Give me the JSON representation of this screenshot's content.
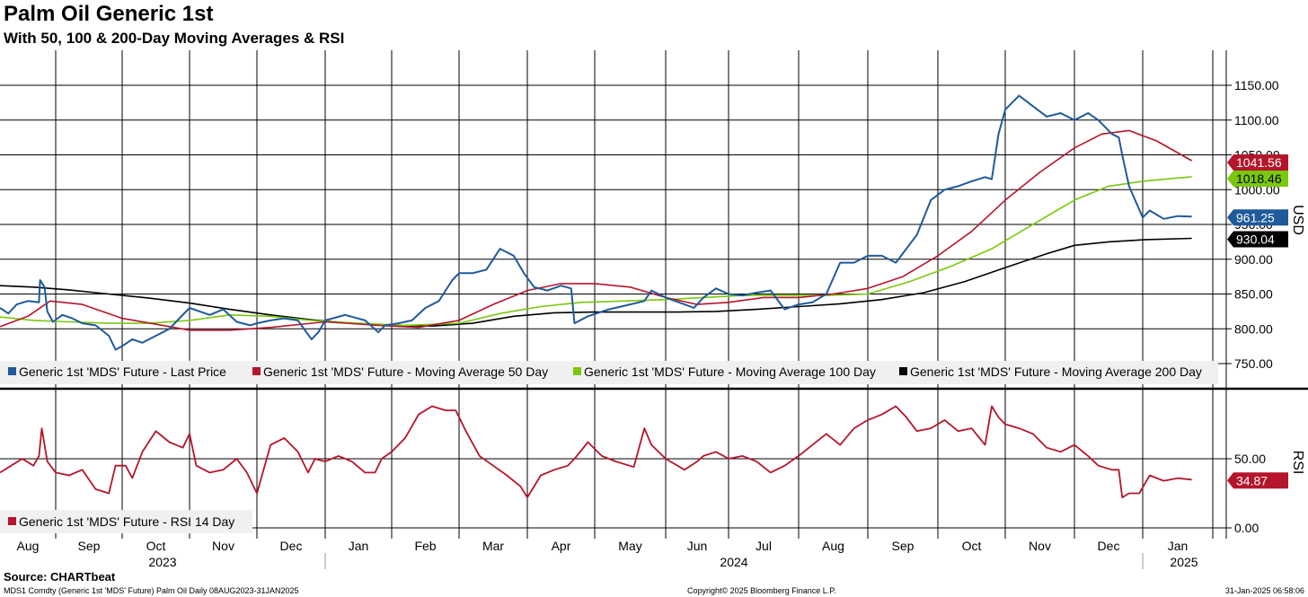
{
  "header": {
    "title": "Palm Oil Generic 1st",
    "subtitle": "With 50, 100 & 200-Day Moving Averages & RSI"
  },
  "footer": {
    "source": "Source: CHARTbeat",
    "left": "MDS1 Comdty (Generic 1st 'MDS' Future) Palm Oil  Daily 08AUG2023-31JAN2025",
    "middle": "Copyright© 2025 Bloomberg Finance L.P.",
    "right": "31-Jan-2025 06:58:06"
  },
  "colors": {
    "last": "#1f5a9a",
    "ma50": "#b5152b",
    "ma100": "#7ac80d",
    "ma200": "#000000",
    "rsi": "#b5152b",
    "grid": "#000000"
  },
  "chart_data": [
    {
      "type": "line",
      "title": "Palm Oil Generic 1st",
      "ylabel": "USD",
      "ylim": [
        720,
        1190
      ],
      "yticks": [
        750,
        800,
        850,
        900,
        950,
        1000,
        1050,
        1100,
        1150
      ],
      "ytick_labels": [
        "750.00",
        "800.00",
        "850.00",
        "900.00",
        "950.00",
        "1000.00",
        "1050.00",
        "1100.00",
        "1150.00"
      ],
      "xlim": [
        0,
        17.9
      ],
      "month_ticks": [
        "Aug",
        "Sep",
        "Oct",
        "Nov",
        "Dec",
        "Jan",
        "Feb",
        "Mar",
        "Apr",
        "May",
        "Jun",
        "Jul",
        "Aug",
        "Sep",
        "Oct",
        "Nov",
        "Dec",
        "Jan"
      ],
      "years": [
        {
          "label": "2023",
          "start": 0,
          "end": 4.7
        },
        {
          "label": "2024",
          "start": 4.7,
          "end": 16.7
        },
        {
          "label": "2025",
          "start": 16.7,
          "end": 17.9
        }
      ],
      "series": [
        {
          "name": "Generic 1st 'MDS' Future - Last Price",
          "color_key": "last",
          "last_label": "961.25",
          "x": [
            0,
            0.15,
            0.3,
            0.5,
            0.7,
            0.72,
            0.8,
            0.85,
            0.95,
            1.1,
            1.25,
            1.4,
            1.6,
            1.8,
            1.9,
            2.0,
            2.15,
            2.3,
            2.5,
            2.7,
            2.8,
            3.0,
            3.15,
            3.3,
            3.5,
            3.7,
            3.9,
            4.0,
            4.2,
            4.4,
            4.6,
            4.8,
            4.9,
            5.0,
            5.3,
            5.6,
            5.8,
            5.9,
            6.1,
            6.3,
            6.5,
            6.7,
            6.9,
            7.0,
            7.2,
            7.4,
            7.6,
            7.8,
            7.95,
            8.1,
            8.3,
            8.5,
            8.65,
            8.7,
            8.9,
            9.2,
            9.5,
            9.7,
            9.8,
            10.0,
            10.3,
            10.45,
            10.6,
            10.8,
            11.0,
            11.2,
            11.4,
            11.6,
            11.8,
            12.0,
            12.2,
            12.4,
            12.6,
            12.8,
            13.0,
            13.2,
            13.4,
            13.55,
            13.7,
            13.9,
            14.1,
            14.3,
            14.5,
            14.7,
            14.8,
            14.9,
            15.0,
            15.2,
            15.4,
            15.6,
            15.8,
            16.0,
            16.2,
            16.35,
            16.55,
            16.65,
            16.7,
            16.8,
            17.0,
            17.1,
            17.3,
            17.5,
            17.7
          ],
          "values": [
            830,
            822,
            835,
            840,
            838,
            870,
            860,
            825,
            810,
            820,
            815,
            808,
            805,
            790,
            770,
            775,
            785,
            780,
            790,
            800,
            810,
            830,
            825,
            820,
            828,
            810,
            805,
            808,
            812,
            815,
            812,
            785,
            795,
            812,
            820,
            812,
            795,
            805,
            808,
            812,
            830,
            840,
            870,
            880,
            880,
            885,
            915,
            905,
            880,
            860,
            855,
            862,
            858,
            808,
            818,
            828,
            835,
            840,
            855,
            845,
            835,
            830,
            845,
            858,
            850,
            848,
            852,
            855,
            828,
            835,
            838,
            850,
            895,
            895,
            905,
            905,
            895,
            915,
            935,
            985,
            1000,
            1005,
            1012,
            1018,
            1015,
            1080,
            1115,
            1135,
            1120,
            1105,
            1110,
            1100,
            1110,
            1100,
            1080,
            1075,
            1050,
            1005,
            960,
            970,
            958,
            962,
            961.25
          ]
        },
        {
          "name": "Generic 1st 'MDS' Future - Moving Average 50 Day",
          "color_key": "ma50",
          "last_label": "1041.56",
          "x": [
            0,
            0.5,
            0.9,
            1.4,
            2.0,
            2.6,
            3.0,
            3.6,
            4.2,
            5.0,
            5.8,
            6.4,
            7.0,
            7.5,
            8.0,
            8.5,
            9.0,
            9.5,
            10.0,
            10.5,
            11.0,
            11.5,
            12.0,
            12.5,
            13.0,
            13.5,
            14.0,
            14.5,
            15.0,
            15.5,
            16.0,
            16.4,
            16.8,
            17.2,
            17.7
          ],
          "values": [
            803,
            818,
            840,
            835,
            815,
            805,
            798,
            798,
            802,
            810,
            805,
            802,
            812,
            835,
            855,
            865,
            865,
            860,
            845,
            835,
            838,
            845,
            845,
            850,
            858,
            875,
            905,
            940,
            985,
            1025,
            1060,
            1080,
            1085,
            1070,
            1041.56
          ]
        },
        {
          "name": "Generic 1st 'MDS' Future - Moving Average 100 Day",
          "color_key": "ma100",
          "last_label": "1018.46",
          "x": [
            0,
            0.6,
            1.2,
            1.8,
            2.4,
            3.0,
            3.6,
            4.2,
            4.8,
            5.5,
            6.2,
            7.0,
            7.6,
            8.2,
            8.8,
            9.4,
            10.0,
            10.6,
            11.2,
            11.8,
            12.4,
            13.0,
            13.6,
            14.2,
            14.8,
            15.4,
            16.0,
            16.5,
            17.0,
            17.4,
            17.7
          ],
          "values": [
            817,
            812,
            810,
            808,
            808,
            812,
            820,
            818,
            812,
            808,
            805,
            808,
            822,
            832,
            838,
            840,
            842,
            845,
            848,
            848,
            848,
            850,
            868,
            890,
            915,
            950,
            985,
            1005,
            1012,
            1016,
            1018.46
          ]
        },
        {
          "name": "Generic 1st 'MDS' Future - Moving Average 200 Day",
          "color_key": "ma200",
          "last_label": "930.04",
          "x": [
            0,
            0.6,
            1.2,
            1.8,
            2.4,
            3.0,
            3.6,
            4.2,
            4.8,
            5.4,
            6.0,
            6.6,
            7.2,
            7.8,
            8.4,
            9.0,
            9.6,
            10.2,
            10.8,
            11.4,
            12.0,
            12.6,
            13.2,
            13.8,
            14.4,
            15.0,
            15.6,
            16.0,
            16.5,
            17.0,
            17.7
          ],
          "values": [
            862,
            860,
            856,
            850,
            844,
            837,
            828,
            820,
            813,
            808,
            805,
            804,
            808,
            818,
            823,
            824,
            824,
            824,
            825,
            828,
            832,
            836,
            842,
            852,
            868,
            888,
            908,
            920,
            925,
            928,
            930.04
          ]
        }
      ]
    },
    {
      "type": "line",
      "title": "RSI",
      "ylabel": "RSI",
      "ylim": [
        -10,
        100
      ],
      "yticks": [
        0,
        50
      ],
      "ytick_labels": [
        "0.00",
        "50.00"
      ],
      "xlim": [
        0,
        17.9
      ],
      "series": [
        {
          "name": "Generic 1st 'MDS' Future - RSI 14 Day",
          "color_key": "rsi",
          "last_label": "34.87",
          "x": [
            0,
            0.2,
            0.4,
            0.6,
            0.7,
            0.75,
            0.85,
            1.0,
            1.2,
            1.4,
            1.6,
            1.8,
            1.9,
            2.05,
            2.15,
            2.3,
            2.5,
            2.7,
            2.8,
            2.9,
            3.0,
            3.1,
            3.3,
            3.5,
            3.7,
            3.85,
            4.0,
            4.2,
            4.4,
            4.6,
            4.75,
            4.85,
            5.0,
            5.2,
            5.4,
            5.6,
            5.75,
            5.85,
            6.0,
            6.2,
            6.4,
            6.6,
            6.8,
            6.95,
            7.1,
            7.3,
            7.5,
            7.7,
            7.9,
            8.0,
            8.2,
            8.4,
            8.6,
            8.7,
            8.9,
            9.1,
            9.3,
            9.55,
            9.7,
            9.8,
            10.0,
            10.3,
            10.5,
            10.6,
            10.8,
            11.0,
            11.2,
            11.4,
            11.6,
            11.8,
            12.0,
            12.2,
            12.4,
            12.6,
            12.8,
            13.0,
            13.2,
            13.4,
            13.55,
            13.7,
            13.9,
            14.1,
            14.3,
            14.5,
            14.7,
            14.8,
            14.9,
            15.0,
            15.2,
            15.4,
            15.6,
            15.8,
            16.0,
            16.2,
            16.35,
            16.55,
            16.65,
            16.7,
            16.8,
            16.95,
            17.1,
            17.3,
            17.5,
            17.7
          ],
          "values": [
            40,
            45,
            50,
            45,
            52,
            72,
            48,
            40,
            38,
            42,
            28,
            25,
            45,
            45,
            36,
            55,
            70,
            62,
            60,
            58,
            68,
            45,
            40,
            42,
            50,
            40,
            25,
            60,
            65,
            55,
            40,
            50,
            48,
            52,
            48,
            40,
            40,
            50,
            55,
            65,
            82,
            88,
            85,
            85,
            70,
            52,
            45,
            38,
            30,
            22,
            38,
            42,
            45,
            50,
            62,
            52,
            48,
            44,
            72,
            60,
            50,
            42,
            48,
            52,
            55,
            50,
            52,
            48,
            40,
            45,
            52,
            60,
            68,
            60,
            72,
            78,
            82,
            88,
            80,
            70,
            72,
            78,
            70,
            72,
            60,
            88,
            80,
            75,
            72,
            68,
            58,
            55,
            60,
            52,
            45,
            42,
            42,
            22,
            25,
            25,
            38,
            34,
            36,
            34.87
          ]
        }
      ]
    }
  ]
}
